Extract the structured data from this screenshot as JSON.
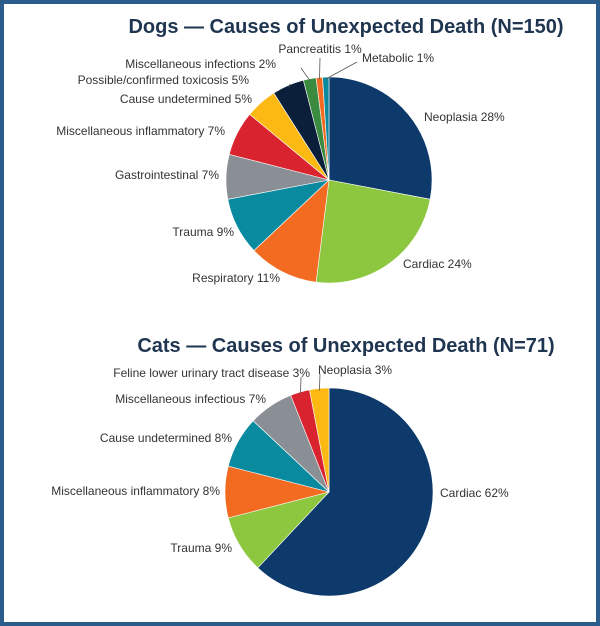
{
  "chart_data": [
    {
      "type": "pie",
      "title": "Dogs — Causes of Unexpected Death (N=150)",
      "slices": [
        {
          "label": "Neoplasia",
          "value": 28,
          "value_label": "28%",
          "color": "#0d3a6b"
        },
        {
          "label": "Cardiac",
          "value": 24,
          "value_label": "24%",
          "color": "#8dc63f"
        },
        {
          "label": "Respiratory",
          "value": 11,
          "value_label": "11%",
          "color": "#f26b21"
        },
        {
          "label": "Trauma",
          "value": 9,
          "value_label": "9%",
          "color": "#0a8a9f"
        },
        {
          "label": "Gastrointestinal",
          "value": 7,
          "value_label": "7%",
          "color": "#8a8f96"
        },
        {
          "label": "Miscellaneous inflammatory",
          "value": 7,
          "value_label": "7%",
          "color": "#d9232e"
        },
        {
          "label": "Cause undetermined",
          "value": 5,
          "value_label": "5%",
          "color": "#fdb913"
        },
        {
          "label": "Possible/confirmed toxicosis",
          "value": 5,
          "value_label": "5%",
          "color": "#0b1f3a"
        },
        {
          "label": "Miscellaneous infections",
          "value": 2,
          "value_label": "2%",
          "color": "#3a8a3f"
        },
        {
          "label": "Pancreatitis",
          "value": 1,
          "value_label": "1%",
          "color": "#f26b21"
        },
        {
          "label": "Metabolic",
          "value": 1,
          "value_label": "1%",
          "color": "#0a8a9f"
        }
      ]
    },
    {
      "type": "pie",
      "title": "Cats — Causes of Unexpected Death (N=71)",
      "slices": [
        {
          "label": "Cardiac",
          "value": 62,
          "value_label": "62%",
          "color": "#0d3a6b"
        },
        {
          "label": "Trauma",
          "value": 9,
          "value_label": "9%",
          "color": "#8dc63f"
        },
        {
          "label": "Miscellaneous inflammatory",
          "value": 8,
          "value_label": "8%",
          "color": "#f26b21"
        },
        {
          "label": "Cause undetermined",
          "value": 8,
          "value_label": "8%",
          "color": "#0a8a9f"
        },
        {
          "label": "Miscellaneous infectious",
          "value": 7,
          "value_label": "7%",
          "color": "#8a8f96"
        },
        {
          "label": "Feline lower urinary tract disease",
          "value": 3,
          "value_label": "3%",
          "color": "#d9232e"
        },
        {
          "label": "Neoplasia",
          "value": 3,
          "value_label": "3%",
          "color": "#fdb913"
        }
      ]
    }
  ]
}
